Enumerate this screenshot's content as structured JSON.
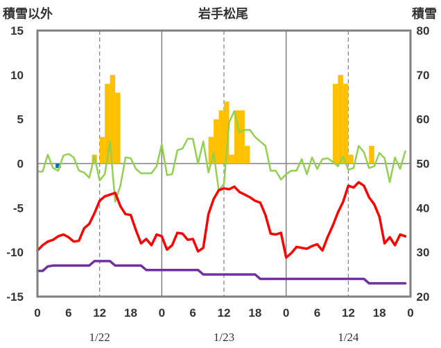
{
  "chart_data": {
    "type": "combo",
    "title": "岩手松尾",
    "left_axis_label": "積雪以外",
    "right_axis_label": "積雪",
    "left_ylim": [
      -15,
      15
    ],
    "left_ticks": [
      15,
      10,
      5,
      0,
      -5,
      -10,
      -15
    ],
    "right_ylim": [
      20,
      80
    ],
    "right_ticks": [
      80,
      70,
      60,
      50,
      40,
      30,
      20
    ],
    "x_range_hours": [
      0,
      72
    ],
    "x_tick_labels": [
      "0",
      "6",
      "12",
      "18",
      "0",
      "6",
      "12",
      "18",
      "0",
      "6",
      "12",
      "18",
      "0"
    ],
    "date_labels": [
      "1/22",
      "1/23",
      "1/24"
    ],
    "grid": "dashed at 12h, solid at day boundaries",
    "colors": {
      "frame": "#7f7f7f",
      "bars": "#ffc000",
      "small_bar": "#0070c0",
      "red_line": "#ff0000",
      "green_line": "#92d050",
      "purple_line": "#7030a0"
    },
    "bar_series": {
      "values": [
        {
          "h": 4,
          "v": -0.5,
          "color": "#0070c0"
        },
        {
          "h": 11,
          "v": 1.0
        },
        {
          "h": 12.5,
          "v": 3.0
        },
        {
          "h": 13.5,
          "v": 9.0
        },
        {
          "h": 14.5,
          "v": 10.0
        },
        {
          "h": 15.5,
          "v": 8.0
        },
        {
          "h": 33.5,
          "v": 3.0
        },
        {
          "h": 34.5,
          "v": 5.0
        },
        {
          "h": 35.5,
          "v": 6.0
        },
        {
          "h": 36.5,
          "v": 7.0
        },
        {
          "h": 37.5,
          "v": 1.0
        },
        {
          "h": 38.5,
          "v": 6.0
        },
        {
          "h": 39.5,
          "v": 6.0
        },
        {
          "h": 40.5,
          "v": 2.0
        },
        {
          "h": 57.5,
          "v": 9.0
        },
        {
          "h": 58.5,
          "v": 10.0
        },
        {
          "h": 59.5,
          "v": 9.0
        },
        {
          "h": 60.5,
          "v": 1.0
        },
        {
          "h": 64.5,
          "v": 2.0
        }
      ]
    },
    "red_line": {
      "values": [
        [
          0,
          -9.8
        ],
        [
          1,
          -9.2
        ],
        [
          2,
          -8.8
        ],
        [
          3,
          -8.6
        ],
        [
          4,
          -8.2
        ],
        [
          5,
          -8.0
        ],
        [
          6,
          -8.3
        ],
        [
          7,
          -8.8
        ],
        [
          8,
          -8.7
        ],
        [
          9,
          -7.3
        ],
        [
          10,
          -6.8
        ],
        [
          11,
          -5.6
        ],
        [
          12,
          -4.2
        ],
        [
          13,
          -3.7
        ],
        [
          14,
          -3.5
        ],
        [
          15,
          -3.3
        ],
        [
          16,
          -4.8
        ],
        [
          17,
          -5.7
        ],
        [
          18,
          -5.8
        ],
        [
          19,
          -7.5
        ],
        [
          20,
          -9.0
        ],
        [
          21,
          -8.5
        ],
        [
          22,
          -9.2
        ],
        [
          23,
          -8.0
        ],
        [
          24,
          -8.2
        ],
        [
          25,
          -9.7
        ],
        [
          26,
          -9.2
        ],
        [
          27,
          -7.8
        ],
        [
          28,
          -7.9
        ],
        [
          29,
          -8.6
        ],
        [
          30,
          -8.5
        ],
        [
          31,
          -9.9
        ],
        [
          32,
          -9.5
        ],
        [
          33,
          -5.7
        ],
        [
          34,
          -4.0
        ],
        [
          35,
          -3.0
        ],
        [
          36,
          -2.8
        ],
        [
          37,
          -2.9
        ],
        [
          38,
          -2.6
        ],
        [
          39,
          -3.2
        ],
        [
          40,
          -3.5
        ],
        [
          41,
          -3.8
        ],
        [
          42,
          -4.2
        ],
        [
          43,
          -4.4
        ],
        [
          44,
          -5.8
        ],
        [
          45,
          -7.9
        ],
        [
          46,
          -8.0
        ],
        [
          47,
          -7.8
        ],
        [
          48,
          -10.6
        ],
        [
          49,
          -10.1
        ],
        [
          50,
          -9.4
        ],
        [
          51,
          -9.5
        ],
        [
          52,
          -9.6
        ],
        [
          53,
          -9.3
        ],
        [
          54,
          -9.1
        ],
        [
          55,
          -9.8
        ],
        [
          56,
          -8.3
        ],
        [
          57,
          -7.0
        ],
        [
          58,
          -5.5
        ],
        [
          59,
          -4.3
        ],
        [
          60,
          -2.5
        ],
        [
          61,
          -2.7
        ],
        [
          62,
          -2.1
        ],
        [
          63,
          -2.5
        ],
        [
          64,
          -3.8
        ],
        [
          65,
          -4.6
        ],
        [
          66,
          -6.0
        ],
        [
          67,
          -9.0
        ],
        [
          68,
          -8.3
        ],
        [
          69,
          -9.2
        ],
        [
          70,
          -8.0
        ],
        [
          71,
          -8.2
        ]
      ]
    },
    "green_line": {
      "values": [
        [
          0,
          -0.9
        ],
        [
          1,
          -0.9
        ],
        [
          2,
          1.0
        ],
        [
          3,
          -0.5
        ],
        [
          4,
          -0.8
        ],
        [
          5,
          0.9
        ],
        [
          6,
          1.1
        ],
        [
          7,
          0.7
        ],
        [
          8,
          -0.8
        ],
        [
          9,
          -1.0
        ],
        [
          10,
          -1.6
        ],
        [
          11,
          0.8
        ],
        [
          12,
          -1.9
        ],
        [
          13,
          -1.2
        ],
        [
          14,
          2.5
        ],
        [
          15,
          -4.3
        ],
        [
          16,
          -2.5
        ],
        [
          17,
          0.7
        ],
        [
          18,
          0.6
        ],
        [
          19,
          -0.6
        ],
        [
          20,
          -1.1
        ],
        [
          21,
          -1.1
        ],
        [
          22,
          -1.1
        ],
        [
          23,
          -0.3
        ],
        [
          24,
          2.2
        ],
        [
          25,
          -1.3
        ],
        [
          26,
          -1.2
        ],
        [
          27,
          1.5
        ],
        [
          28,
          1.7
        ],
        [
          29,
          2.8
        ],
        [
          30,
          2.8
        ],
        [
          31,
          0.0
        ],
        [
          32,
          2.5
        ],
        [
          33,
          -1.0
        ],
        [
          34,
          1.2
        ],
        [
          35,
          -3.0
        ],
        [
          36,
          -2.3
        ],
        [
          37,
          4.7
        ],
        [
          38,
          5.9
        ],
        [
          39,
          3.5
        ],
        [
          40,
          3.8
        ],
        [
          41,
          3.8
        ],
        [
          42,
          3.0
        ],
        [
          43,
          2.5
        ],
        [
          44,
          2.0
        ],
        [
          45,
          -0.8
        ],
        [
          46,
          -0.8
        ],
        [
          47,
          -1.8
        ],
        [
          48,
          -1.2
        ],
        [
          49,
          -0.8
        ],
        [
          50,
          -0.8
        ],
        [
          51,
          0.5
        ],
        [
          52,
          -1.2
        ],
        [
          53,
          0.7
        ],
        [
          54,
          -0.6
        ],
        [
          55,
          0.5
        ],
        [
          56,
          0.6
        ],
        [
          57,
          0.2
        ],
        [
          58,
          -0.3
        ],
        [
          59,
          0.8
        ],
        [
          60,
          -0.7
        ],
        [
          61,
          -0.5
        ],
        [
          62,
          2.0
        ],
        [
          63,
          1.3
        ],
        [
          64,
          -0.5
        ],
        [
          65,
          -0.3
        ],
        [
          66,
          1.2
        ],
        [
          67,
          0.6
        ],
        [
          68,
          -2.1
        ],
        [
          69,
          0.7
        ],
        [
          70,
          -0.6
        ],
        [
          71,
          1.4
        ]
      ]
    },
    "purple_line": {
      "axis": "left",
      "values": [
        [
          0,
          -12.1
        ],
        [
          1,
          -12.1
        ],
        [
          2,
          -11.6
        ],
        [
          3,
          -11.5
        ],
        [
          4,
          -11.5
        ],
        [
          10,
          -11.5
        ],
        [
          11,
          -11.0
        ],
        [
          14,
          -11.0
        ],
        [
          15,
          -11.5
        ],
        [
          20,
          -11.5
        ],
        [
          21,
          -12.0
        ],
        [
          31,
          -12.0
        ],
        [
          32,
          -12.5
        ],
        [
          42,
          -12.5
        ],
        [
          43,
          -13.0
        ],
        [
          63,
          -13.0
        ],
        [
          64,
          -13.5
        ],
        [
          71,
          -13.5
        ]
      ]
    }
  }
}
